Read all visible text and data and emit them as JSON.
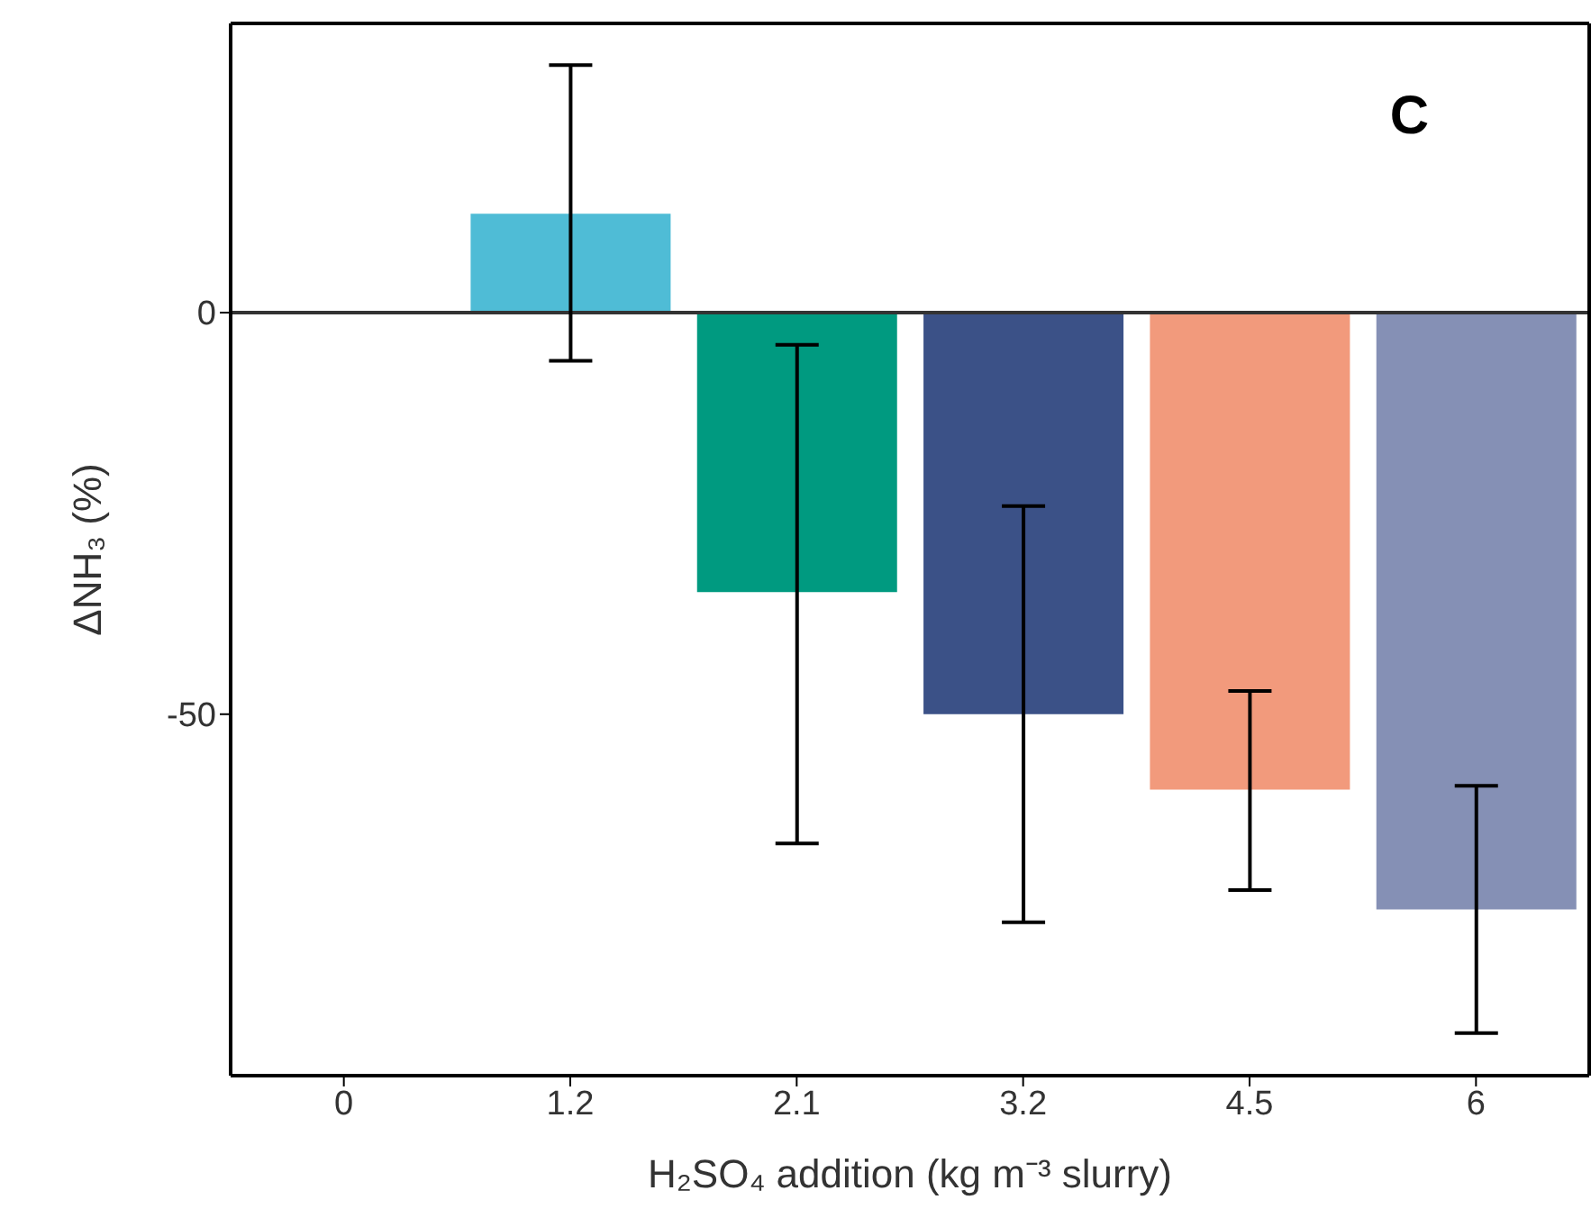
{
  "chart_data": {
    "type": "bar",
    "xlabel": "H₂SO₄ addition (kg m⁻³ slurry)",
    "ylabel": "ΔNH₃ (%)",
    "annotations": [
      "C"
    ],
    "categories": [
      "0",
      "1.2",
      "2.1",
      "3.2",
      "4.5",
      "6"
    ],
    "values": [
      0,
      12.3,
      -34.8,
      -50,
      -59.4,
      -74.3
    ],
    "colors": [
      "#999999",
      "#4fbcd6",
      "#009a80",
      "#3b5187",
      "#f29a7c",
      "#8590b5"
    ],
    "errors": [
      null,
      [
        -6,
        30.8
      ],
      [
        -66.1,
        -4
      ],
      [
        -75.9,
        -24.1
      ],
      [
        -71.9,
        -47.1
      ],
      [
        -89.7,
        -58.9
      ]
    ],
    "ylim": [
      -95,
      36
    ],
    "yticks": [
      -50,
      0
    ],
    "ref_lines": [
      {
        "axis": "y",
        "value": 0,
        "color": "#333333"
      }
    ],
    "grid": false
  }
}
